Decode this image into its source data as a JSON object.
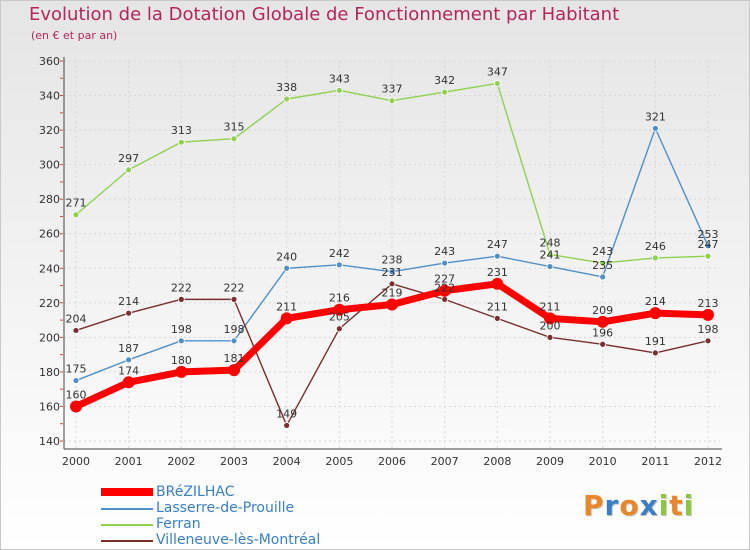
{
  "title": "Evolution de la Dotation Globale de Fonctionnement par Habitant",
  "subtitle": "(en € et par an)",
  "chart_data": {
    "type": "line",
    "title": "Evolution de la Dotation Globale de Fonctionnement par Habitant",
    "subtitle": "(en € et par an)",
    "xlabel": "",
    "ylabel": "",
    "ylim": [
      140,
      360
    ],
    "yticks": [
      140,
      160,
      180,
      200,
      220,
      240,
      260,
      280,
      300,
      320,
      340,
      360
    ],
    "categories": [
      "2000",
      "2001",
      "2002",
      "2003",
      "2004",
      "2005",
      "2006",
      "2007",
      "2008",
      "2009",
      "2010",
      "2011",
      "2012"
    ],
    "grid": true,
    "series": [
      {
        "name": "BRéZILHAC",
        "color": "#ff0000",
        "values": [
          160,
          174,
          180,
          181,
          211,
          216,
          219,
          227,
          231,
          211,
          209,
          214,
          213
        ]
      },
      {
        "name": "Lasserre-de-Prouille",
        "color": "#4f8fc8",
        "values": [
          175,
          187,
          198,
          198,
          240,
          242,
          238,
          243,
          247,
          241,
          235,
          321,
          253
        ]
      },
      {
        "name": "Ferran",
        "color": "#8fd14f",
        "values": [
          271,
          297,
          313,
          315,
          338,
          343,
          337,
          342,
          347,
          248,
          243,
          246,
          247
        ]
      },
      {
        "name": "Villeneuve-lès-Montréal",
        "color": "#7a2e2e",
        "values": [
          204,
          214,
          222,
          222,
          149,
          205,
          231,
          222,
          211,
          200,
          196,
          191,
          198
        ]
      }
    ]
  },
  "legend": [
    {
      "label": "BRéZILHAC",
      "color": "#ff0000"
    },
    {
      "label": "Lasserre-de-Prouille",
      "color": "#4f8fc8"
    },
    {
      "label": "Ferran",
      "color": "#8fd14f"
    },
    {
      "label": "Villeneuve-lès-Montréal",
      "color": "#7a2e2e"
    }
  ],
  "logo": {
    "letters": [
      "P",
      "r",
      "o",
      "x",
      "i",
      "t",
      "i"
    ],
    "colors": [
      "#e8862a",
      "#3a7fc4",
      "#e8862a",
      "#3a7fc4",
      "#8dc63f",
      "#e8862a",
      "#8dc63f"
    ]
  }
}
